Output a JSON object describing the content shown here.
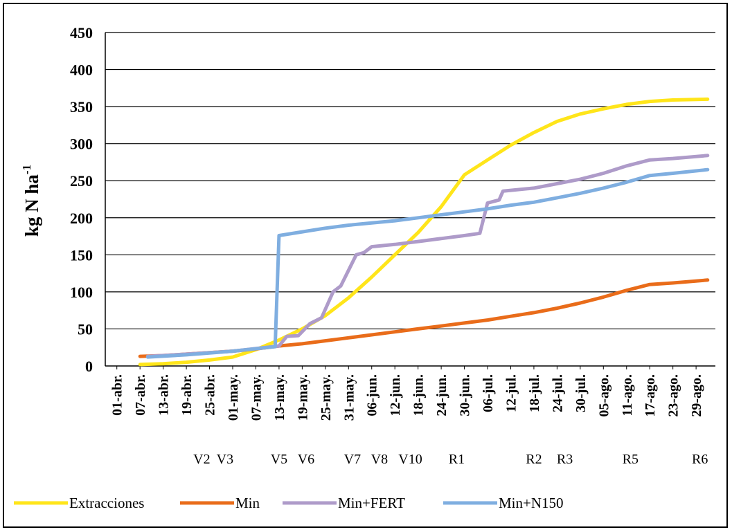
{
  "chart_data": {
    "type": "line",
    "title": "",
    "xlabel": "",
    "ylabel": "kg N ha",
    "ylabel_superscript": "-1",
    "ylim": [
      0,
      450
    ],
    "yticks": [
      0,
      50,
      100,
      150,
      200,
      250,
      300,
      350,
      400,
      450
    ],
    "grid": true,
    "legend_position": "bottom",
    "x_tick_labels": [
      "01-abr.",
      "07-abr.",
      "13-abr.",
      "19-abr.",
      "25-abr.",
      "01-may.",
      "07-may.",
      "13-may.",
      "19-may.",
      "25-may.",
      "31-may.",
      "06-jun.",
      "12-jun.",
      "18-jun.",
      "24-jun.",
      "30-jun.",
      "06-jul.",
      "12-jul.",
      "18-jul.",
      "24-jul.",
      "30-jul.",
      "05-ago.",
      "11-ago.",
      "17-ago.",
      "23-ago.",
      "29-ago."
    ],
    "x_tick_dates": [
      "2000-04-01",
      "2000-04-07",
      "2000-04-13",
      "2000-04-19",
      "2000-04-25",
      "2000-05-01",
      "2000-05-07",
      "2000-05-13",
      "2000-05-19",
      "2000-05-25",
      "2000-05-31",
      "2000-06-06",
      "2000-06-12",
      "2000-06-18",
      "2000-06-24",
      "2000-06-30",
      "2000-07-06",
      "2000-07-12",
      "2000-07-18",
      "2000-07-24",
      "2000-07-30",
      "2000-08-05",
      "2000-08-11",
      "2000-08-17",
      "2000-08-23",
      "2000-08-29"
    ],
    "x_range": [
      "2000-03-29",
      "2000-09-03"
    ],
    "stages": [
      {
        "label": "V2",
        "date": "2000-04-23"
      },
      {
        "label": "V3",
        "date": "2000-04-29"
      },
      {
        "label": "V5",
        "date": "2000-05-13"
      },
      {
        "label": "V6",
        "date": "2000-05-20"
      },
      {
        "label": "V7",
        "date": "2000-06-01"
      },
      {
        "label": "V8",
        "date": "2000-06-08"
      },
      {
        "label": "V10",
        "date": "2000-06-16"
      },
      {
        "label": "R1",
        "date": "2000-06-28"
      },
      {
        "label": "R2",
        "date": "2000-07-18"
      },
      {
        "label": "R3",
        "date": "2000-07-26"
      },
      {
        "label": "R5",
        "date": "2000-08-12"
      },
      {
        "label": "R6",
        "date": "2000-08-30"
      }
    ],
    "series": [
      {
        "name": "Extracciones",
        "color": "#FFE51A",
        "points": [
          [
            "2000-04-07",
            2
          ],
          [
            "2000-04-13",
            3
          ],
          [
            "2000-04-19",
            5
          ],
          [
            "2000-04-25",
            8
          ],
          [
            "2000-05-01",
            12
          ],
          [
            "2000-05-07",
            22
          ],
          [
            "2000-05-13",
            35
          ],
          [
            "2000-05-19",
            50
          ],
          [
            "2000-05-25",
            68
          ],
          [
            "2000-05-31",
            92
          ],
          [
            "2000-06-06",
            120
          ],
          [
            "2000-06-12",
            150
          ],
          [
            "2000-06-18",
            180
          ],
          [
            "2000-06-24",
            215
          ],
          [
            "2000-06-30",
            258
          ],
          [
            "2000-07-06",
            278
          ],
          [
            "2000-07-12",
            298
          ],
          [
            "2000-07-18",
            315
          ],
          [
            "2000-07-24",
            330
          ],
          [
            "2000-07-30",
            340
          ],
          [
            "2000-08-05",
            347
          ],
          [
            "2000-08-11",
            353
          ],
          [
            "2000-08-17",
            357
          ],
          [
            "2000-08-23",
            359
          ],
          [
            "2000-09-01",
            360
          ]
        ]
      },
      {
        "name": "Min",
        "color": "#E96C1A",
        "points": [
          [
            "2000-04-07",
            13
          ],
          [
            "2000-04-13",
            14
          ],
          [
            "2000-04-19",
            16
          ],
          [
            "2000-04-25",
            18
          ],
          [
            "2000-05-01",
            20
          ],
          [
            "2000-05-07",
            23
          ],
          [
            "2000-05-13",
            27
          ],
          [
            "2000-05-19",
            30
          ],
          [
            "2000-05-25",
            34
          ],
          [
            "2000-05-31",
            38
          ],
          [
            "2000-06-06",
            42
          ],
          [
            "2000-06-12",
            46
          ],
          [
            "2000-06-18",
            50
          ],
          [
            "2000-06-24",
            54
          ],
          [
            "2000-06-30",
            58
          ],
          [
            "2000-07-06",
            62
          ],
          [
            "2000-07-12",
            67
          ],
          [
            "2000-07-18",
            72
          ],
          [
            "2000-07-24",
            78
          ],
          [
            "2000-07-30",
            85
          ],
          [
            "2000-08-05",
            93
          ],
          [
            "2000-08-11",
            102
          ],
          [
            "2000-08-17",
            110
          ],
          [
            "2000-08-23",
            112
          ],
          [
            "2000-09-01",
            116
          ]
        ]
      },
      {
        "name": "Min+FERT",
        "color": "#AE9BC9",
        "points": [
          [
            "2000-04-09",
            13
          ],
          [
            "2000-04-19",
            16
          ],
          [
            "2000-05-01",
            20
          ],
          [
            "2000-05-13",
            27
          ],
          [
            "2000-05-15",
            40
          ],
          [
            "2000-05-18",
            41
          ],
          [
            "2000-05-21",
            57
          ],
          [
            "2000-05-24",
            65
          ],
          [
            "2000-05-27",
            100
          ],
          [
            "2000-05-29",
            108
          ],
          [
            "2000-06-02",
            150
          ],
          [
            "2000-06-04",
            153
          ],
          [
            "2000-06-06",
            161
          ],
          [
            "2000-06-12",
            164
          ],
          [
            "2000-06-18",
            168
          ],
          [
            "2000-06-24",
            172
          ],
          [
            "2000-06-30",
            176
          ],
          [
            "2000-07-04",
            179
          ],
          [
            "2000-07-06",
            220
          ],
          [
            "2000-07-09",
            224
          ],
          [
            "2000-07-10",
            236
          ],
          [
            "2000-07-18",
            240
          ],
          [
            "2000-07-24",
            246
          ],
          [
            "2000-07-30",
            252
          ],
          [
            "2000-08-05",
            260
          ],
          [
            "2000-08-11",
            270
          ],
          [
            "2000-08-17",
            278
          ],
          [
            "2000-08-23",
            280
          ],
          [
            "2000-09-01",
            284
          ]
        ]
      },
      {
        "name": "Min+N150",
        "color": "#7FAEE0",
        "points": [
          [
            "2000-04-09",
            12
          ],
          [
            "2000-04-19",
            15
          ],
          [
            "2000-05-01",
            20
          ],
          [
            "2000-05-12",
            26
          ],
          [
            "2000-05-13",
            176
          ],
          [
            "2000-05-19",
            181
          ],
          [
            "2000-05-25",
            186
          ],
          [
            "2000-05-31",
            190
          ],
          [
            "2000-06-06",
            193
          ],
          [
            "2000-06-12",
            196
          ],
          [
            "2000-06-18",
            200
          ],
          [
            "2000-06-24",
            204
          ],
          [
            "2000-06-30",
            208
          ],
          [
            "2000-07-06",
            212
          ],
          [
            "2000-07-12",
            217
          ],
          [
            "2000-07-18",
            221
          ],
          [
            "2000-07-24",
            227
          ],
          [
            "2000-07-30",
            233
          ],
          [
            "2000-08-05",
            240
          ],
          [
            "2000-08-11",
            248
          ],
          [
            "2000-08-17",
            257
          ],
          [
            "2000-08-23",
            260
          ],
          [
            "2000-09-01",
            265
          ]
        ]
      }
    ]
  }
}
